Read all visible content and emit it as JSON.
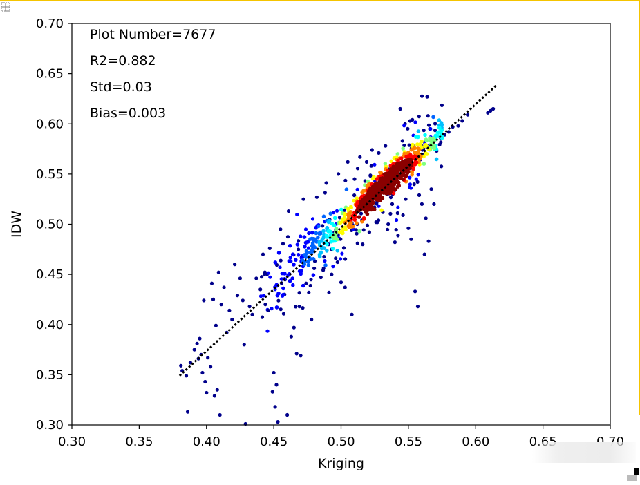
{
  "chart_data": {
    "type": "scatter",
    "title": "",
    "xlabel": "Kriging",
    "ylabel": "IDW",
    "xlim": [
      0.3,
      0.7
    ],
    "ylim": [
      0.3,
      0.7
    ],
    "xticks": [
      "0.30",
      "0.35",
      "0.40",
      "0.45",
      "0.50",
      "0.55",
      "0.60",
      "0.65",
      "0.70"
    ],
    "yticks": [
      "0.30",
      "0.35",
      "0.40",
      "0.45",
      "0.50",
      "0.55",
      "0.60",
      "0.65",
      "0.70"
    ],
    "annotations": [
      "Plot Number=7677",
      "R2=0.882",
      "Std=0.03",
      "Bias=0.003"
    ],
    "fit_line": {
      "style": "dotted",
      "color": "#000000",
      "x": [
        0.38,
        0.615
      ],
      "y": [
        0.349,
        0.638
      ]
    },
    "colormap": [
      "#00008b",
      "#0000ff",
      "#0064ff",
      "#00bfff",
      "#00ffff",
      "#7fff7f",
      "#ffff00",
      "#ff8000",
      "#ff0000",
      "#8b0000"
    ],
    "outliers": [
      [
        0.381,
        0.359
      ],
      [
        0.382,
        0.354
      ],
      [
        0.385,
        0.349
      ],
      [
        0.386,
        0.313
      ],
      [
        0.388,
        0.362
      ],
      [
        0.391,
        0.375
      ],
      [
        0.393,
        0.381
      ],
      [
        0.394,
        0.366
      ],
      [
        0.395,
        0.386
      ],
      [
        0.396,
        0.37
      ],
      [
        0.397,
        0.352
      ],
      [
        0.398,
        0.424
      ],
      [
        0.399,
        0.343
      ],
      [
        0.4,
        0.332
      ],
      [
        0.401,
        0.367
      ],
      [
        0.403,
        0.358
      ],
      [
        0.404,
        0.441
      ],
      [
        0.405,
        0.425
      ],
      [
        0.406,
        0.329
      ],
      [
        0.407,
        0.399
      ],
      [
        0.408,
        0.335
      ],
      [
        0.409,
        0.452
      ],
      [
        0.41,
        0.31
      ],
      [
        0.411,
        0.42
      ],
      [
        0.413,
        0.437
      ],
      [
        0.415,
        0.392
      ],
      [
        0.417,
        0.414
      ],
      [
        0.419,
        0.405
      ],
      [
        0.421,
        0.46
      ],
      [
        0.423,
        0.429
      ],
      [
        0.425,
        0.446
      ],
      [
        0.427,
        0.424
      ],
      [
        0.428,
        0.38
      ],
      [
        0.429,
        0.301
      ],
      [
        0.432,
        0.418
      ],
      [
        0.434,
        0.41
      ],
      [
        0.437,
        0.446
      ],
      [
        0.44,
        0.435
      ],
      [
        0.442,
        0.47
      ],
      [
        0.445,
        0.45
      ],
      [
        0.447,
        0.476
      ],
      [
        0.449,
        0.333
      ],
      [
        0.45,
        0.352
      ],
      [
        0.451,
        0.318
      ],
      [
        0.452,
        0.34
      ],
      [
        0.453,
        0.303
      ],
      [
        0.455,
        0.495
      ],
      [
        0.458,
        0.43
      ],
      [
        0.46,
        0.31
      ],
      [
        0.461,
        0.513
      ],
      [
        0.463,
        0.388
      ],
      [
        0.465,
        0.397
      ],
      [
        0.467,
        0.371
      ],
      [
        0.469,
        0.418
      ],
      [
        0.47,
        0.369
      ],
      [
        0.472,
        0.525
      ],
      [
        0.474,
        0.441
      ],
      [
        0.476,
        0.432
      ],
      [
        0.478,
        0.405
      ],
      [
        0.48,
        0.456
      ],
      [
        0.482,
        0.527
      ],
      [
        0.485,
        0.447
      ],
      [
        0.487,
        0.456
      ],
      [
        0.489,
        0.541
      ],
      [
        0.491,
        0.432
      ],
      [
        0.493,
        0.45
      ],
      [
        0.496,
        0.466
      ],
      [
        0.498,
        0.55
      ],
      [
        0.5,
        0.442
      ],
      [
        0.503,
        0.437
      ],
      [
        0.505,
        0.562
      ],
      [
        0.508,
        0.41
      ],
      [
        0.51,
        0.545
      ],
      [
        0.512,
        0.5
      ],
      [
        0.514,
        0.567
      ],
      [
        0.516,
        0.48
      ],
      [
        0.519,
        0.562
      ],
      [
        0.521,
        0.492
      ],
      [
        0.523,
        0.574
      ],
      [
        0.526,
        0.502
      ],
      [
        0.528,
        0.571
      ],
      [
        0.531,
        0.512
      ],
      [
        0.533,
        0.578
      ],
      [
        0.535,
        0.5
      ],
      [
        0.538,
        0.52
      ],
      [
        0.54,
        0.482
      ],
      [
        0.542,
        0.511
      ],
      [
        0.544,
        0.615
      ],
      [
        0.546,
        0.509
      ],
      [
        0.548,
        0.525
      ],
      [
        0.55,
        0.496
      ],
      [
        0.552,
        0.485
      ],
      [
        0.553,
        0.604
      ],
      [
        0.555,
        0.433
      ],
      [
        0.557,
        0.418
      ],
      [
        0.558,
        0.529
      ],
      [
        0.56,
        0.52
      ],
      [
        0.562,
        0.47
      ],
      [
        0.563,
        0.506
      ],
      [
        0.565,
        0.483
      ],
      [
        0.566,
        0.595
      ],
      [
        0.567,
        0.535
      ],
      [
        0.569,
        0.52
      ],
      [
        0.571,
        0.573
      ],
      [
        0.574,
        0.586
      ],
      [
        0.577,
        0.589
      ],
      [
        0.58,
        0.592
      ],
      [
        0.583,
        0.597
      ],
      [
        0.587,
        0.598
      ],
      [
        0.59,
        0.603
      ],
      [
        0.594,
        0.609
      ],
      [
        0.609,
        0.611
      ],
      [
        0.611,
        0.613
      ],
      [
        0.613,
        0.615
      ]
    ],
    "density_core": {
      "description": "dense band along fit line, colored by point density",
      "x_range": [
        0.45,
        0.575
      ],
      "peak": [
        0.532,
        0.535
      ],
      "points": 900
    }
  }
}
